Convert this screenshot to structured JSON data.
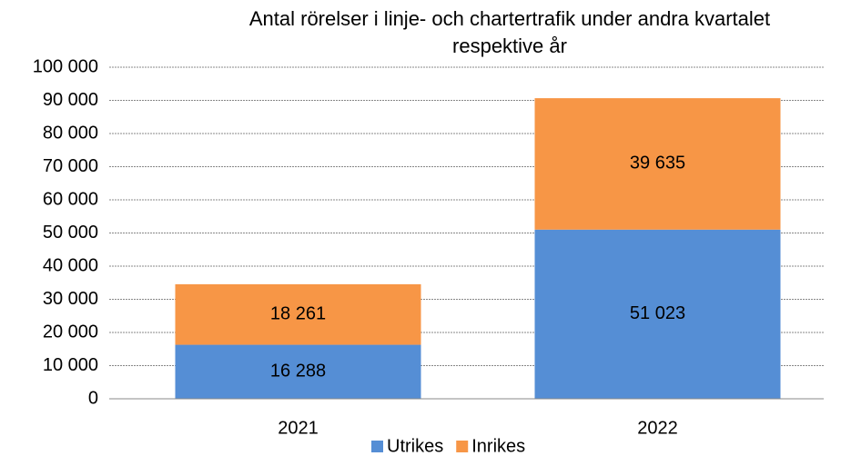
{
  "chart_data": {
    "type": "stacked_bar",
    "title": "Antal rörelser i linje- och chartertrafik under andra kvartalet respektive år",
    "categories": [
      "2021",
      "2022"
    ],
    "series": [
      {
        "name": "Utrikes",
        "color": "#558ed5",
        "values": [
          16288,
          51023
        ],
        "value_labels": [
          "16 288",
          "51 023"
        ]
      },
      {
        "name": "Inrikes",
        "color": "#f79646",
        "values": [
          18261,
          39635
        ],
        "value_labels": [
          "18 261",
          "39 635"
        ]
      }
    ],
    "ylim": [
      0,
      100000
    ],
    "yticks": [
      0,
      {
        "value": 10000,
        "label": "10 000"
      },
      {
        "value": 20000,
        "label": "20 000"
      },
      {
        "value": 30000,
        "label": "30 000"
      },
      {
        "value": 40000,
        "label": "40 000"
      },
      {
        "value": 50000,
        "label": "50 000"
      },
      {
        "value": 60000,
        "label": "60 000"
      },
      {
        "value": 70000,
        "label": "70 000"
      },
      {
        "value": 80000,
        "label": "80 000"
      },
      {
        "value": 90000,
        "label": "90 000"
      },
      {
        "value": 100000,
        "label": "100 000"
      }
    ],
    "grid": true,
    "legend": "bottom"
  }
}
